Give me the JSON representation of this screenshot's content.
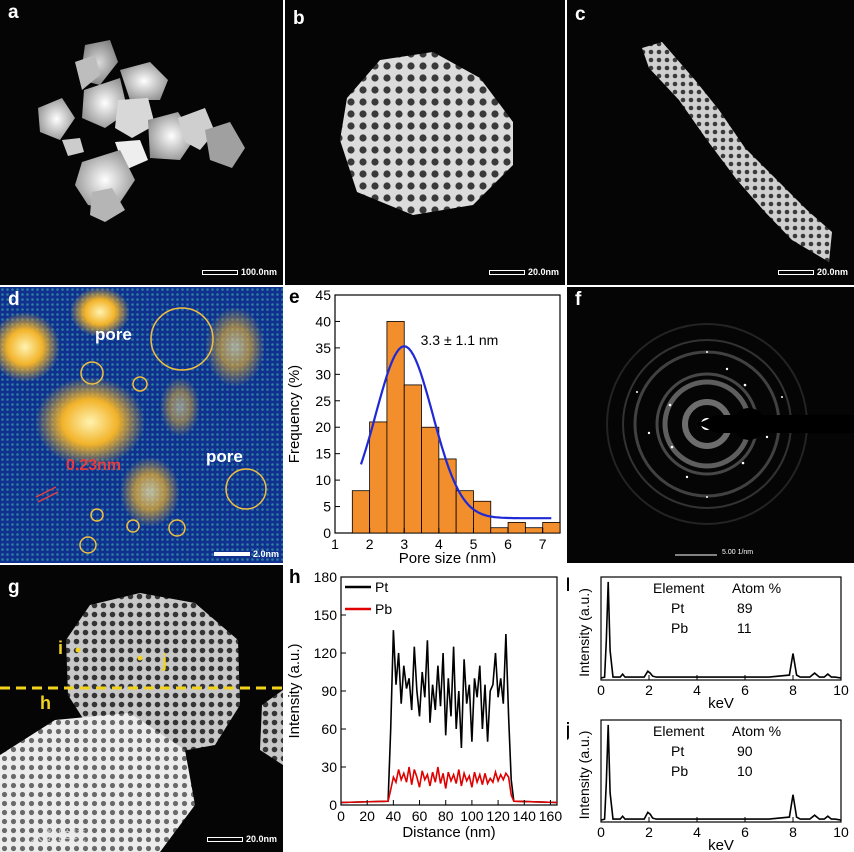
{
  "panels": {
    "a": {
      "label": "a",
      "scale": "100.0nm"
    },
    "b": {
      "label": "b",
      "scale": "20.0nm"
    },
    "c": {
      "label": "c",
      "scale": "20.0nm"
    },
    "d": {
      "label": "d",
      "scale": "2.0nm",
      "pore1": "pore",
      "pore2": "pore",
      "lattice": "0.23nm"
    },
    "e": {
      "label": "e",
      "annotation": "3.3 ± 1.1 nm",
      "xlabel": "Pore size (nm)",
      "ylabel": "Frequency (%)"
    },
    "f": {
      "label": "f",
      "scale": "5.00 1/nm"
    },
    "g": {
      "label": "g",
      "scale": "20.0nm",
      "pt_i": "i",
      "pt_j": "j",
      "line_h": "h"
    },
    "h": {
      "label": "h",
      "xlabel": "Distance (nm)",
      "ylabel": "Intensity (a.u.)"
    },
    "i": {
      "label": "I",
      "xlabel": "keV",
      "ylabel": "Intensity (a.u.)",
      "header_el": "Element",
      "header_at": "Atom %",
      "rows": [
        [
          "Pt",
          "89"
        ],
        [
          "Pb",
          "11"
        ]
      ]
    },
    "j": {
      "label": "j",
      "xlabel": "keV",
      "ylabel": "Intensity (a.u.)",
      "header_el": "Element",
      "header_at": "Atom %",
      "rows": [
        [
          "Pt",
          "90"
        ],
        [
          "Pb",
          "10"
        ]
      ]
    }
  },
  "watermark": "大数跨境",
  "chart_data": [
    {
      "type": "bar",
      "panel": "e",
      "xlabel": "Pore size (nm)",
      "ylabel": "Frequency (%)",
      "xlim": [
        1,
        7.5
      ],
      "ylim": [
        0,
        45
      ],
      "xticks": [
        1,
        2,
        3,
        4,
        5,
        6,
        7
      ],
      "yticks": [
        0,
        5,
        10,
        15,
        20,
        25,
        30,
        35,
        40,
        45
      ],
      "bin_width": 0.5,
      "x": [
        1.75,
        2.25,
        2.75,
        3.25,
        3.75,
        4.25,
        4.75,
        5.25,
        5.75,
        6.25,
        6.75,
        7.25
      ],
      "values": [
        8,
        21,
        40,
        28,
        20,
        14,
        8,
        6,
        1,
        2,
        1,
        2
      ],
      "fit": {
        "type": "gaussian",
        "mean": 3.0,
        "sigma": 0.82,
        "amplitude": 32.5,
        "baseline": 2.8,
        "x_range": [
          1.75,
          7.25
        ]
      },
      "annotation": "3.3 ± 1.1 nm",
      "colors": {
        "bar": "#f28e2b",
        "fit": "#1f2ad6"
      }
    },
    {
      "type": "line",
      "panel": "h",
      "xlabel": "Distance (nm)",
      "ylabel": "Intensity (a.u.)",
      "xlim": [
        0,
        165
      ],
      "ylim": [
        0,
        180
      ],
      "xticks": [
        0,
        20,
        40,
        60,
        80,
        100,
        120,
        140,
        160
      ],
      "yticks": [
        0,
        30,
        60,
        90,
        120,
        150,
        180
      ],
      "series": [
        {
          "name": "Pt",
          "color": "#000000",
          "x": [
            0,
            36,
            38,
            40,
            42,
            44,
            46,
            48,
            50,
            52,
            54,
            56,
            58,
            60,
            62,
            64,
            66,
            68,
            70,
            72,
            74,
            76,
            78,
            80,
            82,
            84,
            86,
            88,
            90,
            92,
            94,
            96,
            98,
            100,
            102,
            104,
            106,
            108,
            110,
            112,
            114,
            116,
            118,
            120,
            122,
            124,
            126,
            128,
            130,
            132,
            165
          ],
          "y": [
            2,
            3,
            60,
            138,
            95,
            120,
            80,
            110,
            92,
            100,
            75,
            125,
            90,
            70,
            105,
            85,
            130,
            65,
            95,
            75,
            110,
            78,
            120,
            55,
            100,
            70,
            125,
            60,
            90,
            45,
            115,
            80,
            95,
            50,
            100,
            85,
            110,
            60,
            95,
            50,
            90,
            95,
            120,
            85,
            100,
            80,
            135,
            70,
            20,
            3,
            2
          ]
        },
        {
          "name": "Pb",
          "color": "#e00000",
          "x": [
            0,
            36,
            38,
            40,
            42,
            44,
            46,
            48,
            50,
            52,
            54,
            56,
            58,
            60,
            62,
            64,
            66,
            68,
            70,
            72,
            74,
            76,
            78,
            80,
            82,
            84,
            86,
            88,
            90,
            92,
            94,
            96,
            98,
            100,
            102,
            104,
            106,
            108,
            110,
            112,
            114,
            116,
            118,
            120,
            122,
            124,
            126,
            128,
            130,
            132,
            165
          ],
          "y": [
            2,
            3,
            12,
            22,
            18,
            28,
            20,
            25,
            18,
            30,
            16,
            28,
            22,
            14,
            27,
            20,
            24,
            15,
            26,
            18,
            30,
            17,
            25,
            13,
            26,
            19,
            24,
            17,
            28,
            15,
            25,
            19,
            23,
            14,
            26,
            18,
            24,
            16,
            25,
            17,
            21,
            18,
            26,
            19,
            24,
            20,
            25,
            22,
            8,
            3,
            2
          ]
        }
      ]
    },
    {
      "type": "line",
      "panel": "I",
      "xlabel": "keV",
      "ylabel": "Intensity (a.u.)",
      "xlim": [
        0,
        10
      ],
      "xticks": [
        0,
        2,
        4,
        6,
        8,
        10
      ],
      "series": [
        {
          "name": "",
          "color": "#000000",
          "x": [
            0,
            0.15,
            0.22,
            0.3,
            0.38,
            0.5,
            0.8,
            0.9,
            1.0,
            1.2,
            1.8,
            1.95,
            2.05,
            2.15,
            2.3,
            3,
            4,
            5,
            6,
            7,
            7.85,
            8.0,
            8.15,
            8.3,
            8.7,
            8.9,
            9.1,
            9.3,
            9.45,
            9.6,
            9.75,
            10
          ],
          "y": [
            0.02,
            0.03,
            0.4,
            1.0,
            0.3,
            0.03,
            0.03,
            0.06,
            0.03,
            0.03,
            0.03,
            0.09,
            0.07,
            0.04,
            0.03,
            0.03,
            0.03,
            0.03,
            0.03,
            0.03,
            0.05,
            0.27,
            0.05,
            0.03,
            0.03,
            0.07,
            0.03,
            0.03,
            0.06,
            0.03,
            0.03,
            0.02
          ]
        }
      ]
    },
    {
      "type": "line",
      "panel": "j",
      "xlabel": "keV",
      "ylabel": "Intensity (a.u.)",
      "xlim": [
        0,
        10
      ],
      "xticks": [
        0,
        2,
        4,
        6,
        8,
        10
      ],
      "series": [
        {
          "name": "",
          "color": "#000000",
          "x": [
            0,
            0.15,
            0.22,
            0.3,
            0.38,
            0.5,
            0.8,
            0.9,
            1.0,
            1.2,
            1.8,
            1.95,
            2.05,
            2.15,
            2.3,
            3,
            4,
            5,
            6,
            7,
            7.85,
            8.0,
            8.15,
            8.3,
            8.7,
            8.9,
            9.1,
            9.3,
            9.45,
            9.6,
            9.75,
            10
          ],
          "y": [
            0.02,
            0.03,
            0.4,
            1.0,
            0.3,
            0.03,
            0.03,
            0.06,
            0.03,
            0.03,
            0.03,
            0.1,
            0.08,
            0.04,
            0.03,
            0.03,
            0.03,
            0.03,
            0.03,
            0.03,
            0.05,
            0.28,
            0.05,
            0.03,
            0.03,
            0.07,
            0.03,
            0.03,
            0.06,
            0.03,
            0.03,
            0.02
          ]
        }
      ]
    }
  ]
}
